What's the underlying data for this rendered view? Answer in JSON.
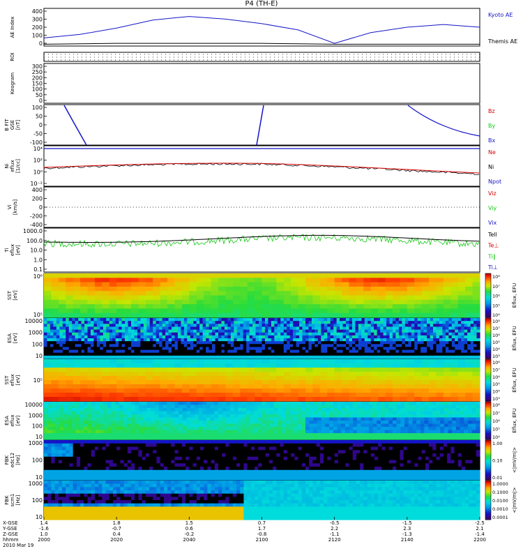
{
  "title": "P4 (TH-E)",
  "colors": {
    "red": "#d40000",
    "green": "#14c814",
    "blue": "#1414c8",
    "black": "#000000"
  },
  "x_rows": {
    "labels": [
      "X-GSE",
      "Y-GSE",
      "Z-GSE",
      "hhmm",
      "2010 Mar 19"
    ],
    "ticks": [
      {
        "x": "1.4",
        "y": "-1.6",
        "z": "1.0",
        "t": "2000"
      },
      {
        "x": "1.8",
        "y": "-0.7",
        "z": "0.4",
        "t": "2020"
      },
      {
        "x": "1.5",
        "y": "0.6",
        "z": "-0.2",
        "t": "2040"
      },
      {
        "x": "0.7",
        "y": "1.7",
        "z": "-0.8",
        "t": "2100"
      },
      {
        "x": "-0.5",
        "y": "2.2",
        "z": "-1.1",
        "t": "2120"
      },
      {
        "x": "-1.5",
        "y": "2.3",
        "z": "-1.3",
        "t": "2140"
      },
      {
        "x": "-2.5",
        "y": "2.1",
        "z": "-1.4",
        "t": "2200"
      }
    ]
  },
  "panels": [
    {
      "ylabel": [
        "AE Index"
      ],
      "yticks": [
        "400",
        "300",
        "200",
        "100",
        "0"
      ],
      "legend": [
        "Kyoto AE",
        "Themis AE"
      ]
    },
    {
      "ylabel": [
        "ROI"
      ],
      "yticks": [],
      "legend": []
    },
    {
      "ylabel": [
        "Keogram"
      ],
      "yticks": [
        "300",
        "250",
        "200",
        "150",
        "100",
        "50",
        "0"
      ],
      "legend": []
    },
    {
      "ylabel": [
        "B FIT",
        "GSE",
        "[nT]"
      ],
      "yticks": [
        "100",
        "50",
        "0",
        "-50",
        "-100"
      ],
      "legend": [
        "Bz",
        "By",
        "Bx"
      ]
    },
    {
      "ylabel": [
        "Ni",
        "eflux",
        "[1/cc]"
      ],
      "yticks": [
        "10⁴",
        "10²",
        "10⁰",
        "10⁻²"
      ],
      "legend": [
        "Ne",
        "Ni",
        "Npot"
      ]
    },
    {
      "ylabel": [
        "Vi",
        "[km/s]"
      ],
      "yticks": [
        "400",
        "200",
        "0",
        "-200",
        "-400"
      ],
      "legend": [
        "Viz",
        "Viy",
        "Vix"
      ]
    },
    {
      "ylabel": [
        "Ti",
        "eflux",
        "[eV]"
      ],
      "yticks": [
        "1000.0",
        "100.0",
        "10.0",
        "1.0",
        "0.1"
      ],
      "legend": [
        "Tell",
        "Te⊥",
        "Ti∥",
        "Ti⊥"
      ]
    },
    {
      "ylabel": [
        "SST",
        "[eV]"
      ],
      "yticks": [
        "10⁶",
        "10⁵"
      ],
      "legend": []
    },
    {
      "ylabel": [
        "ESA",
        "[eV]"
      ],
      "yticks": [
        "10000",
        "1000",
        "100",
        "10"
      ],
      "legend": []
    },
    {
      "ylabel": [
        "SST",
        "eflux",
        "[eV]"
      ],
      "yticks": [
        "10⁵"
      ],
      "legend": []
    },
    {
      "ylabel": [
        "ESA",
        "eflux",
        "[eV]"
      ],
      "yticks": [
        "10000",
        "1000",
        "100",
        "10"
      ],
      "legend": []
    },
    {
      "ylabel": [
        "FBK",
        "edc12",
        "[Hz]"
      ],
      "yticks": [
        "1000",
        "100",
        "10"
      ],
      "legend": []
    },
    {
      "ylabel": [
        "FBK",
        "scm1",
        "[Hz]"
      ],
      "yticks": [
        "1000",
        "100",
        "10"
      ],
      "legend": []
    }
  ],
  "colorbars": [
    {
      "ticks": [
        "10⁸",
        "10⁷",
        "10⁶",
        "10⁵",
        "10⁴"
      ],
      "label": "Eflux, EFU"
    },
    {
      "ticks": [
        "10⁸",
        "10⁷",
        "10⁶",
        "10⁵",
        "10⁴",
        "10³"
      ],
      "label": "Eflux, EFU"
    },
    {
      "ticks": [
        "10⁸",
        "10⁷",
        "10⁶",
        "10⁵",
        "10⁴",
        "10³"
      ],
      "label": "Eflux, EFU"
    },
    {
      "ticks": [
        "10⁸",
        "10⁷",
        "10⁶",
        "10⁵",
        "10⁴"
      ],
      "label": "Eflux, EFU"
    },
    {
      "ticks": [
        "1.00",
        "0.10",
        "0.01"
      ],
      "label": "<|mV/m|>"
    },
    {
      "ticks": [
        "1.0000",
        "0.1000",
        "0.0100",
        "0.0010",
        "0.0001"
      ],
      "label": "<|mV/m|>"
    }
  ],
  "chart_data": {
    "type": "line",
    "title": "P4 (TH-E)",
    "x": [
      "2000",
      "2010",
      "2020",
      "2030",
      "2040",
      "2050",
      "2100",
      "2110",
      "2120",
      "2130",
      "2140",
      "2150",
      "2200"
    ],
    "series_kyoto_ae": [
      90,
      130,
      200,
      290,
      330,
      300,
      250,
      180,
      30,
      150,
      210,
      240,
      210
    ],
    "series_themis_ae": [
      20,
      25,
      30,
      30,
      30,
      30,
      30,
      25,
      20,
      20,
      20,
      20,
      20
    ]
  }
}
